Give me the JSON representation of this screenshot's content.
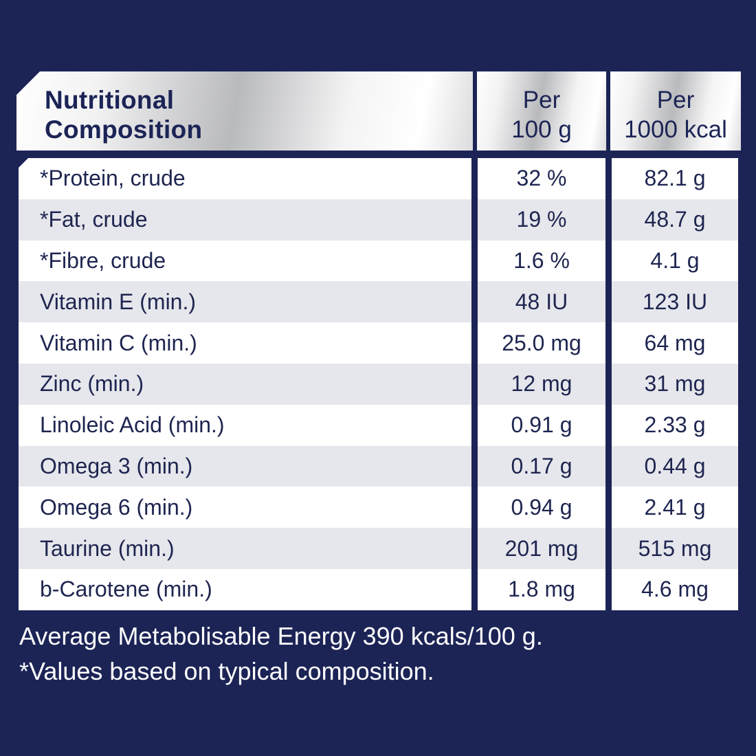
{
  "header": {
    "title_line1": "Nutritional",
    "title_line2": "Composition",
    "col1_line1": "Per",
    "col1_line2": "100 g",
    "col2_line1": "Per",
    "col2_line2": "1000 kcal"
  },
  "rows": [
    {
      "name": "*Protein, crude",
      "per_100g": "32 %",
      "per_1000kcal": "82.1 g"
    },
    {
      "name": "*Fat, crude",
      "per_100g": "19 %",
      "per_1000kcal": "48.7 g"
    },
    {
      "name": "*Fibre, crude",
      "per_100g": "1.6 %",
      "per_1000kcal": "4.1 g"
    },
    {
      "name": "Vitamin E (min.)",
      "per_100g": "48 IU",
      "per_1000kcal": "123 IU"
    },
    {
      "name": "Vitamin C (min.)",
      "per_100g": "25.0 mg",
      "per_1000kcal": "64 mg"
    },
    {
      "name": "Zinc (min.)",
      "per_100g": "12 mg",
      "per_1000kcal": "31 mg"
    },
    {
      "name": "Linoleic Acid (min.)",
      "per_100g": "0.91 g",
      "per_1000kcal": "2.33 g"
    },
    {
      "name": "Omega 3 (min.)",
      "per_100g": "0.17 g",
      "per_1000kcal": "0.44 g"
    },
    {
      "name": "Omega 6 (min.)",
      "per_100g": "0.94 g",
      "per_1000kcal": "2.41 g"
    },
    {
      "name": "Taurine (min.)",
      "per_100g": "201 mg",
      "per_1000kcal": "515 mg"
    },
    {
      "name": "b-Carotene (min.)",
      "per_100g": "1.8 mg",
      "per_1000kcal": "4.6 mg"
    }
  ],
  "footnotes": {
    "energy": "Average Metabolisable Energy 390 kcals/100 g.",
    "values_note": "*Values based on typical composition."
  },
  "colors": {
    "background": "#1c2456",
    "text_dark": "#1e2550",
    "row_alt": "#e6e7ec"
  }
}
